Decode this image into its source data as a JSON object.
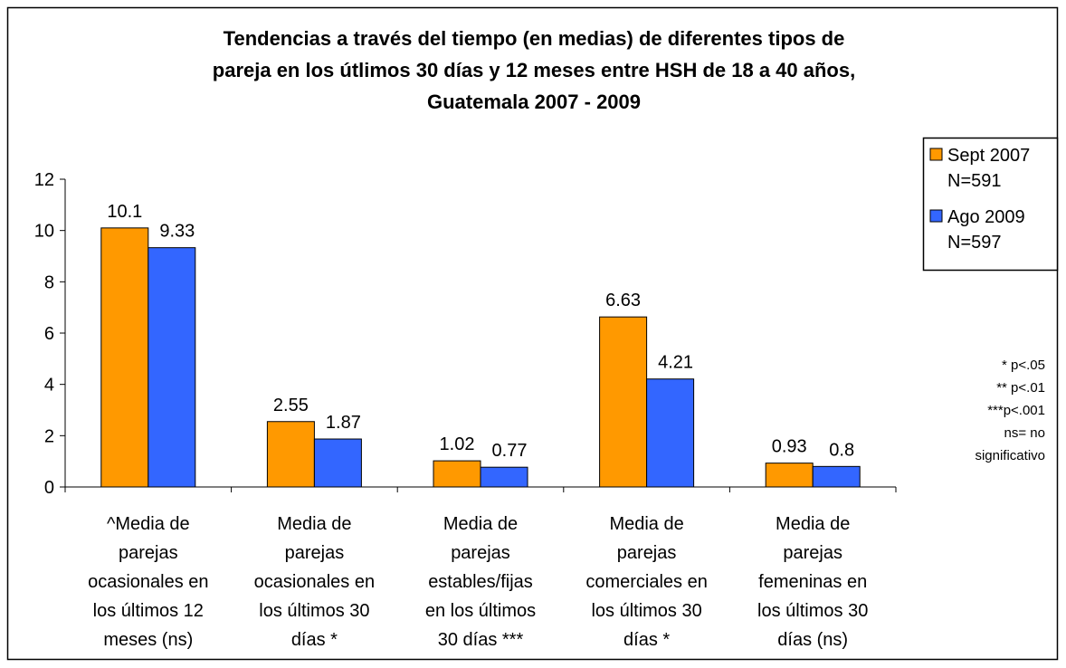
{
  "chart_data": {
    "type": "bar",
    "title": "Tendencias a través del tiempo (en medias) de diferentes tipos de\npareja en los útlimos 30 días y 12 meses entre HSH de 18 a 40 años,\nGuatemala 2007 - 2009",
    "categories": [
      "^Media de\nparejas\nocasionales en\nlos últimos 12\nmeses (ns)",
      "Media de\nparejas\nocasionales en\nlos últimos 30\ndías *",
      "Media de\nparejas\nestables/fijas\nen los últimos\n30 días ***",
      "Media de\nparejas\ncomerciales en\nlos últimos 30\ndías *",
      "Media de\nparejas\nfemeninas en\nlos últimos 30\ndías (ns)"
    ],
    "series": [
      {
        "name": "Sept 2007\nN=591",
        "color": "#ff9900",
        "values": [
          10.1,
          2.55,
          1.02,
          6.63,
          0.93
        ]
      },
      {
        "name": "Ago 2009\nN=597",
        "color": "#3366ff",
        "values": [
          9.33,
          1.87,
          0.77,
          4.21,
          0.8
        ]
      }
    ],
    "ylim": [
      0,
      12
    ],
    "yticks": [
      0,
      2,
      4,
      6,
      8,
      10,
      12
    ],
    "annotation": "* p<.05\n** p<.01\n***p<.001\nns= no\nsignificativo",
    "legend": "right"
  }
}
